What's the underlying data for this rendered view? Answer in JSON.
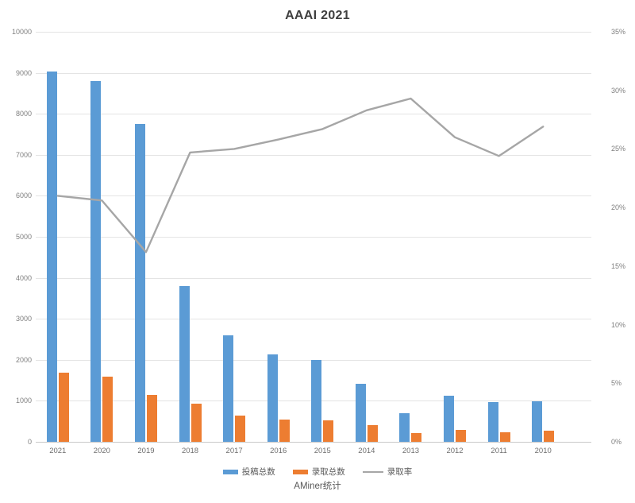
{
  "title": "AAAI 2021",
  "footer": "AMiner统计",
  "colors": {
    "submissions_bar": "#5b9bd5",
    "accepted_bar": "#ed7d31",
    "rate_line": "#a6a6a6",
    "gridline": "#e4e4e4",
    "axis_line": "#c9c9c9",
    "tick_text": "#7f7f7f",
    "title_text": "#3f3f3f"
  },
  "chart_data": {
    "type": "bar",
    "subtype": "grouped-bars-with-line-combo",
    "title": "AAAI 2021",
    "categories": [
      "2021",
      "2020",
      "2019",
      "2018",
      "2017",
      "2016",
      "2015",
      "2014",
      "2013",
      "2012",
      "2011",
      "2010"
    ],
    "series": [
      {
        "name": "投稿总数",
        "type": "bar",
        "axis": "left",
        "color": "#5b9bd5",
        "values": [
          9034,
          8800,
          7745,
          3800,
          2590,
          2132,
          1991,
          1406,
          700,
          1129,
          975,
          982
        ]
      },
      {
        "name": "录取总数",
        "type": "bar",
        "axis": "left",
        "color": "#ed7d31",
        "values": [
          1692,
          1591,
          1147,
          938,
          638,
          549,
          531,
          398,
          204,
          294,
          242,
          264
        ]
      },
      {
        "name": "录取率",
        "type": "line",
        "axis": "right",
        "color": "#a6a6a6",
        "values": [
          21.0,
          20.6,
          16.2,
          24.7,
          25.0,
          25.8,
          26.7,
          28.3,
          29.3,
          26.0,
          24.4,
          26.9
        ]
      }
    ],
    "left_axis": {
      "min": 0,
      "max": 10000,
      "step": 1000,
      "labels": [
        "0",
        "1000",
        "2000",
        "3000",
        "4000",
        "5000",
        "6000",
        "7000",
        "8000",
        "9000",
        "10000"
      ]
    },
    "right_axis": {
      "min": 0,
      "max": 35,
      "step": 5,
      "labels": [
        "0%",
        "5%",
        "10%",
        "15%",
        "20%",
        "25%",
        "30%",
        "35%"
      ]
    },
    "grid": "horizontal",
    "legend_position": "bottom"
  }
}
